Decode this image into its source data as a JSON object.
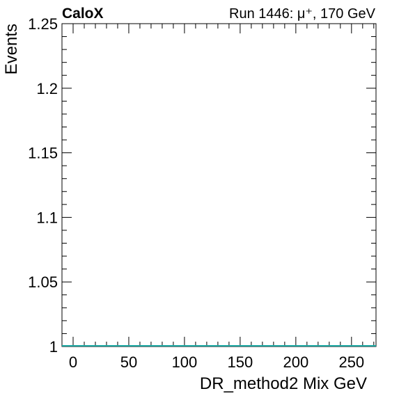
{
  "header": {
    "experiment": "CaloX",
    "run_info": "Run 1446: μ⁺, 170 GeV"
  },
  "colors": {
    "series_line": "#1aa6a0",
    "axis": "#000000"
  },
  "chart_data": {
    "type": "line",
    "title": "",
    "xlabel": "DR_method2 Mix GeV",
    "ylabel": "Events",
    "xlim": [
      -10,
      272
    ],
    "ylim": [
      1.0,
      1.25
    ],
    "x_ticks": [
      0,
      50,
      100,
      150,
      200,
      250
    ],
    "x_tick_labels": [
      "0",
      "50",
      "100",
      "150",
      "200",
      "250"
    ],
    "y_ticks": [
      1.0,
      1.05,
      1.1,
      1.15,
      1.2,
      1.25
    ],
    "y_tick_labels": [
      "1",
      "1.05",
      "1.1",
      "1.15",
      "1.2",
      "1.25"
    ],
    "grid": false,
    "legend": "none",
    "series": [
      {
        "x": [
          -10,
          272
        ],
        "values": [
          1.0,
          1.0
        ]
      }
    ]
  }
}
